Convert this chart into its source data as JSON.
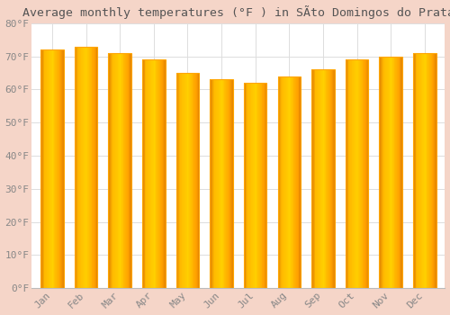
{
  "title": "Average monthly temperatures (°F ) in SÃto Domingos do Prata",
  "months": [
    "Jan",
    "Feb",
    "Mar",
    "Apr",
    "May",
    "Jun",
    "Jul",
    "Aug",
    "Sep",
    "Oct",
    "Nov",
    "Dec"
  ],
  "values": [
    72,
    73,
    71,
    69,
    65,
    63,
    62,
    64,
    66,
    69,
    70,
    71
  ],
  "bar_color_main": "#FFA500",
  "bar_color_light": "#FFD050",
  "bar_color_dark": "#E08000",
  "background_color": "#FFFFFF",
  "figure_bg_color": "#F5D5C8",
  "grid_color": "#DDDDDD",
  "ylim": [
    0,
    80
  ],
  "yticks": [
    0,
    10,
    20,
    30,
    40,
    50,
    60,
    70,
    80
  ],
  "ytick_labels": [
    "0°F",
    "10°F",
    "20°F",
    "30°F",
    "40°F",
    "50°F",
    "60°F",
    "70°F",
    "80°F"
  ],
  "title_fontsize": 9.5,
  "tick_fontsize": 8,
  "tick_color": "#888888"
}
